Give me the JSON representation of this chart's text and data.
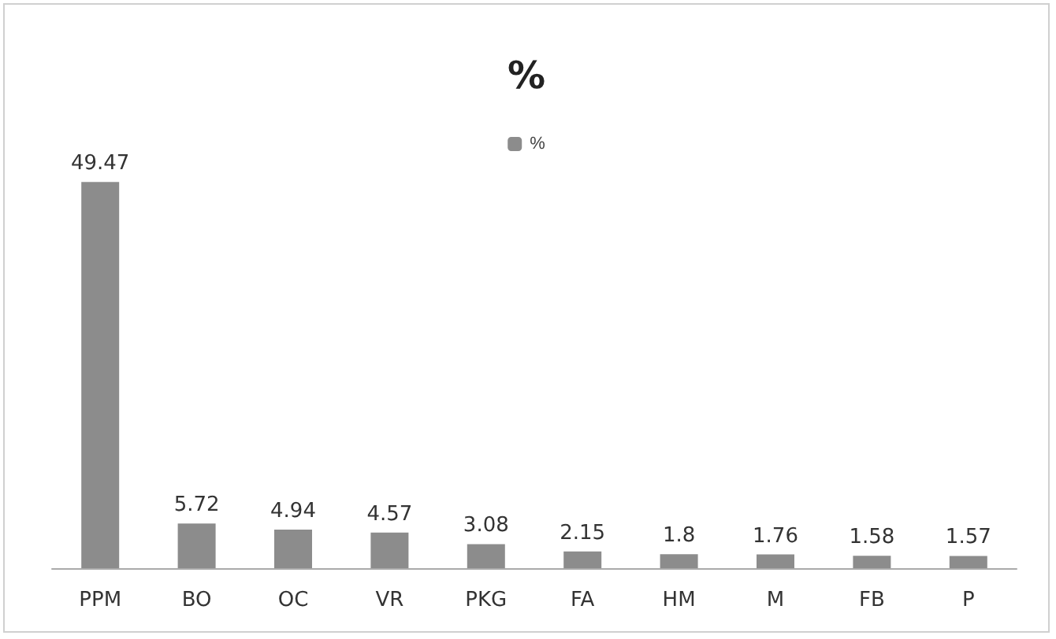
{
  "chart_data": {
    "type": "bar",
    "title": "%",
    "categories": [
      "PPM",
      "BO",
      "OC",
      "VR",
      "PKG",
      "FA",
      "HM",
      "M",
      "FB",
      "P"
    ],
    "series": [
      {
        "name": "%",
        "color": "#8c8c8c",
        "values": [
          49.47,
          5.72,
          4.94,
          4.57,
          3.08,
          2.15,
          1.8,
          1.76,
          1.58,
          1.57
        ]
      }
    ],
    "data_labels": true,
    "legend": "top",
    "grid": false
  }
}
